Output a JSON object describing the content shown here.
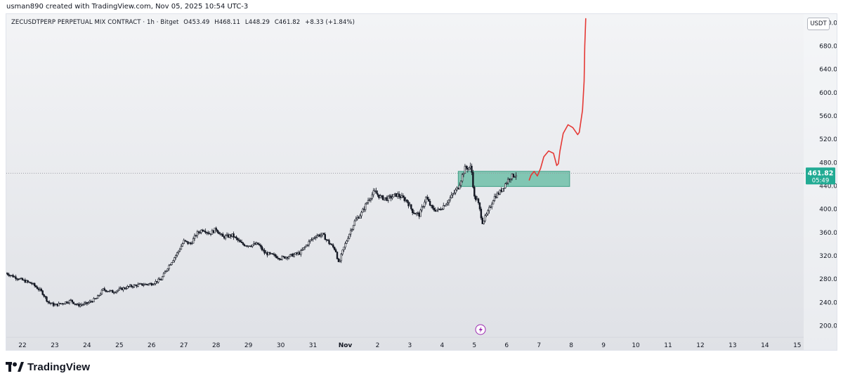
{
  "header": {
    "credit": "usman890 created with TradingView.com, Nov 05, 2025 10:54 UTC-3"
  },
  "legend": {
    "symbol": "ZECUSDTPERP PERPETUAL MIX CONTRACT · 1h · Bitget",
    "open": "O453.49",
    "high": "H468.11",
    "low": "L448.29",
    "close": "C461.82",
    "change": "+8.33 (+1.84%)"
  },
  "currency_button": "USDT",
  "footer": {
    "brand": "TradingView"
  },
  "price_label": {
    "price": "461.82",
    "countdown": "05:49",
    "color": "#22ab94"
  },
  "colors": {
    "candle": "#131722",
    "zone_fill": "#6fbfa8",
    "zone_border": "#3f9f86",
    "projection": "#e53935",
    "last_price_line": "#9598a1",
    "lightning_icon": "#9c27b0"
  },
  "icons": {
    "lightning": "lightning-icon",
    "logo": "tradingview-logo-icon"
  },
  "chart_data": {
    "type": "candlestick",
    "timeframe": "1h",
    "y_axis": {
      "ticks": [
        200,
        240,
        280,
        320,
        360,
        400,
        440,
        480,
        520,
        560,
        600,
        640,
        680,
        720
      ],
      "tick_labels": [
        "200.00",
        "240.00",
        "280.00",
        "320.00",
        "360.00",
        "400.00",
        "440.00",
        "480.00",
        "520.00",
        "560.00",
        "600.00",
        "640.00",
        "680.00",
        "720.00"
      ],
      "range": [
        180,
        735
      ]
    },
    "x_axis": {
      "labels": [
        "22",
        "23",
        "24",
        "25",
        "26",
        "27",
        "28",
        "29",
        "30",
        "31",
        "Nov",
        "2",
        "3",
        "4",
        "5",
        "6",
        "7",
        "8",
        "9",
        "10",
        "11",
        "12",
        "13",
        "14",
        "15"
      ],
      "range_days": [
        -0.5,
        24.2
      ]
    },
    "price_path": [
      [
        -0.5,
        290
      ],
      [
        -0.3,
        285
      ],
      [
        0,
        278
      ],
      [
        0.3,
        272
      ],
      [
        0.6,
        258
      ],
      [
        0.8,
        240
      ],
      [
        1.0,
        235
      ],
      [
        1.2,
        238
      ],
      [
        1.5,
        243
      ],
      [
        1.7,
        235
      ],
      [
        2.0,
        238
      ],
      [
        2.3,
        247
      ],
      [
        2.5,
        262
      ],
      [
        2.8,
        258
      ],
      [
        3.0,
        262
      ],
      [
        3.3,
        267
      ],
      [
        3.6,
        270
      ],
      [
        4.0,
        272
      ],
      [
        4.3,
        280
      ],
      [
        4.5,
        300
      ],
      [
        4.8,
        325
      ],
      [
        5.0,
        345
      ],
      [
        5.2,
        340
      ],
      [
        5.4,
        358
      ],
      [
        5.6,
        366
      ],
      [
        5.8,
        358
      ],
      [
        6.0,
        366
      ],
      [
        6.2,
        352
      ],
      [
        6.5,
        355
      ],
      [
        6.8,
        340
      ],
      [
        7.0,
        338
      ],
      [
        7.3,
        340
      ],
      [
        7.5,
        325
      ],
      [
        7.8,
        320
      ],
      [
        8.0,
        316
      ],
      [
        8.3,
        320
      ],
      [
        8.6,
        325
      ],
      [
        8.9,
        345
      ],
      [
        9.1,
        355
      ],
      [
        9.3,
        356
      ],
      [
        9.5,
        342
      ],
      [
        9.7,
        330
      ],
      [
        9.8,
        305
      ],
      [
        9.9,
        325
      ],
      [
        10.1,
        355
      ],
      [
        10.3,
        380
      ],
      [
        10.5,
        393
      ],
      [
        10.7,
        415
      ],
      [
        10.9,
        430
      ],
      [
        11.1,
        420
      ],
      [
        11.3,
        418
      ],
      [
        11.6,
        425
      ],
      [
        11.9,
        415
      ],
      [
        12.1,
        395
      ],
      [
        12.3,
        390
      ],
      [
        12.5,
        420
      ],
      [
        12.7,
        400
      ],
      [
        12.9,
        398
      ],
      [
        13.2,
        415
      ],
      [
        13.5,
        438
      ],
      [
        13.7,
        470
      ],
      [
        13.9,
        472
      ],
      [
        14.0,
        420
      ],
      [
        14.1,
        415
      ],
      [
        14.25,
        378
      ],
      [
        14.4,
        392
      ],
      [
        14.6,
        420
      ],
      [
        14.8,
        430
      ],
      [
        15.0,
        447
      ],
      [
        15.1,
        455
      ],
      [
        15.3,
        460
      ]
    ],
    "resistance_zone": {
      "x_start": 13.5,
      "x_end": 16.95,
      "y_low": 439,
      "y_high": 465
    },
    "last_price": 461.82,
    "projection_path": [
      [
        15.7,
        450
      ],
      [
        15.75,
        458
      ],
      [
        15.85,
        465
      ],
      [
        15.95,
        457
      ],
      [
        16.05,
        470
      ],
      [
        16.15,
        490
      ],
      [
        16.3,
        500
      ],
      [
        16.45,
        496
      ],
      [
        16.55,
        475
      ],
      [
        16.6,
        478
      ],
      [
        16.65,
        500
      ],
      [
        16.75,
        530
      ],
      [
        16.9,
        545
      ],
      [
        17.05,
        540
      ],
      [
        17.2,
        528
      ],
      [
        17.25,
        532
      ],
      [
        17.35,
        570
      ],
      [
        17.4,
        620
      ],
      [
        17.42,
        680
      ],
      [
        17.45,
        727
      ]
    ]
  }
}
